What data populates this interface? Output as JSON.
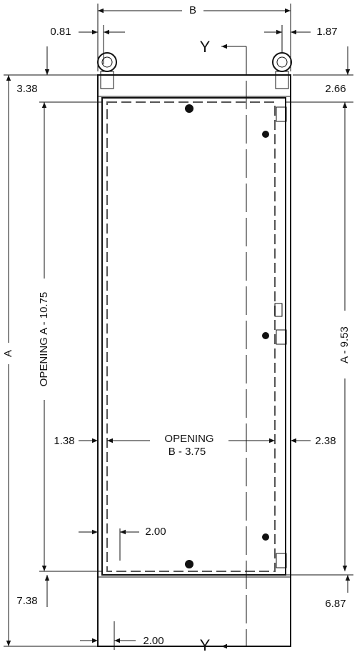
{
  "title_dim": "B",
  "dims": {
    "left_top": "0.81",
    "right_top": "1.87",
    "left_upper": "3.38",
    "right_upper": "2.66",
    "overall_height": "A",
    "opening_height": "OPENING A - 10.75",
    "mount_height": "A - 9.53",
    "left_mid": "1.38",
    "opening_word": "OPENING",
    "opening_width": "B - 3.75",
    "right_mid": "2.38",
    "inner_offset": "2.00",
    "left_lower": "7.38",
    "right_lower": "6.87",
    "bottom_offset": "2.00"
  },
  "section": {
    "top": "Y",
    "bottom": "Y"
  }
}
